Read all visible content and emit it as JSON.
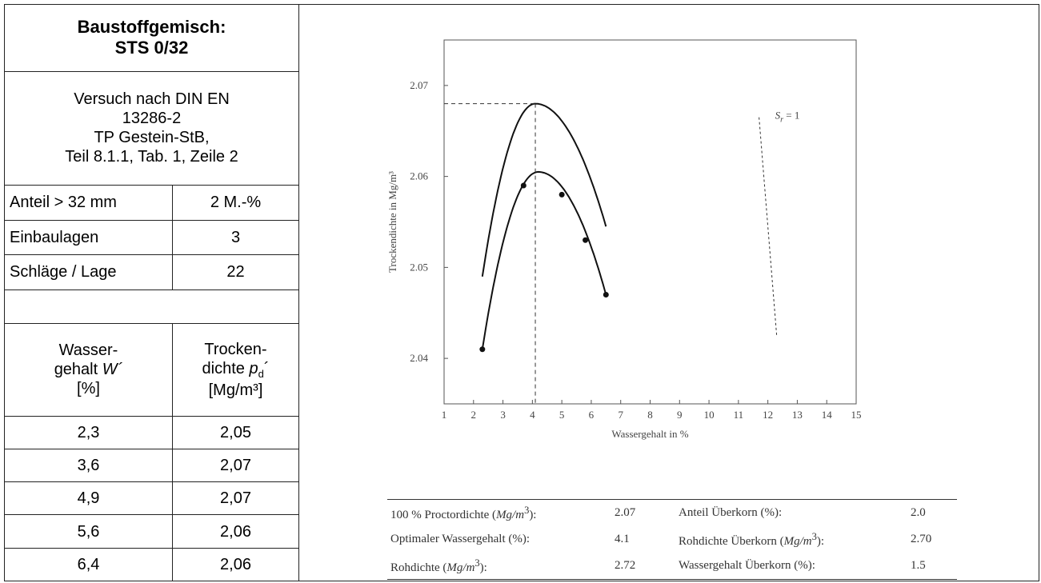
{
  "left_panel": {
    "title_line1": "Baustoffgemisch:",
    "title_line2": "STS 0/32",
    "method_line1": "Versuch nach DIN EN",
    "method_line2": "13286-2",
    "method_line3": "TP Gestein-StB,",
    "method_line4": "Teil 8.1.1, Tab. 1, Zeile 2",
    "params": [
      {
        "label": "Anteil > 32 mm",
        "value": "2 M.-%"
      },
      {
        "label": "Einbaulagen",
        "value": "3"
      },
      {
        "label": "Schläge / Lage",
        "value": "22"
      }
    ],
    "header_col1_line1": "Wasser-",
    "header_col1_line2": "gehalt ",
    "header_col1_sym": "W´",
    "header_col1_line3": "[%]",
    "header_col2_line1": "Trocken-",
    "header_col2_line2": "dichte ",
    "header_col2_sym": "p",
    "header_col2_sub": "d",
    "header_col2_sym_suffix": "´",
    "header_col2_line3": "[Mg/m³]",
    "rows": [
      {
        "w": "2,3",
        "pd": "2,05"
      },
      {
        "w": "3,6",
        "pd": "2,07"
      },
      {
        "w": "4,9",
        "pd": "2,07"
      },
      {
        "w": "5,6",
        "pd": "2,06"
      },
      {
        "w": "6,4",
        "pd": "2,06"
      }
    ]
  },
  "chart_data": {
    "type": "line",
    "xlabel": "Wassergehalt in %",
    "ylabel": "Trockendichte in Mg/m³",
    "xlim": [
      1,
      15
    ],
    "ylim": [
      2.035,
      2.075
    ],
    "x_ticks": [
      "1",
      "2",
      "3",
      "4",
      "5",
      "6",
      "7",
      "8",
      "9",
      "10",
      "11",
      "12",
      "13",
      "14",
      "15"
    ],
    "y_ticks": [
      "2.04",
      "2.05",
      "2.06",
      "2.07"
    ],
    "grid": false,
    "series": [
      {
        "points": [
          {
            "x": 2.3,
            "y": 2.041
          },
          {
            "x": 3.7,
            "y": 2.059
          },
          {
            "x": 5.0,
            "y": 2.058
          },
          {
            "x": 5.8,
            "y": 2.053
          },
          {
            "x": 6.5,
            "y": 2.047
          }
        ],
        "curve_peak": {
          "x": 4.2,
          "y": 2.0605
        }
      },
      {
        "curve": [
          {
            "x": 2.3,
            "y": 2.049
          },
          {
            "x": 4.1,
            "y": 2.068
          },
          {
            "x": 6.5,
            "y": 2.0545
          }
        ]
      }
    ],
    "saturation_line": {
      "label": "S",
      "label_sub": "r",
      "label_suffix": " = 1",
      "points": [
        {
          "x": 11.7,
          "y": 2.0665
        },
        {
          "x": 12.3,
          "y": 2.0425
        }
      ]
    },
    "optimum": {
      "x": 4.1,
      "y": 2.068
    },
    "colors": {
      "line": "#111111",
      "dashed": "#333333",
      "frame": "#555555"
    }
  },
  "stats": {
    "r1c1_pre": "100 % Proctordichte (",
    "r1c1_unit": "Mg/m",
    "r1c1_post": "):",
    "r1c2": "2.07",
    "r1c3_pre": "Anteil Überkorn (%):",
    "r1c4": "2.0",
    "r2c1": "Optimaler Wassergehalt (%):",
    "r2c2": "4.1",
    "r2c3_pre": "Rohdichte Überkorn (",
    "r2c3_unit": "Mg/m",
    "r2c3_post": "):",
    "r2c4": "2.70",
    "r3c1_pre": "Rohdichte (",
    "r3c1_unit": "Mg/m",
    "r3c1_post": "):",
    "r3c2": "2.72",
    "r3c3_pre": "Wassergehalt Überkorn (%):",
    "r3c4": "1.5"
  }
}
